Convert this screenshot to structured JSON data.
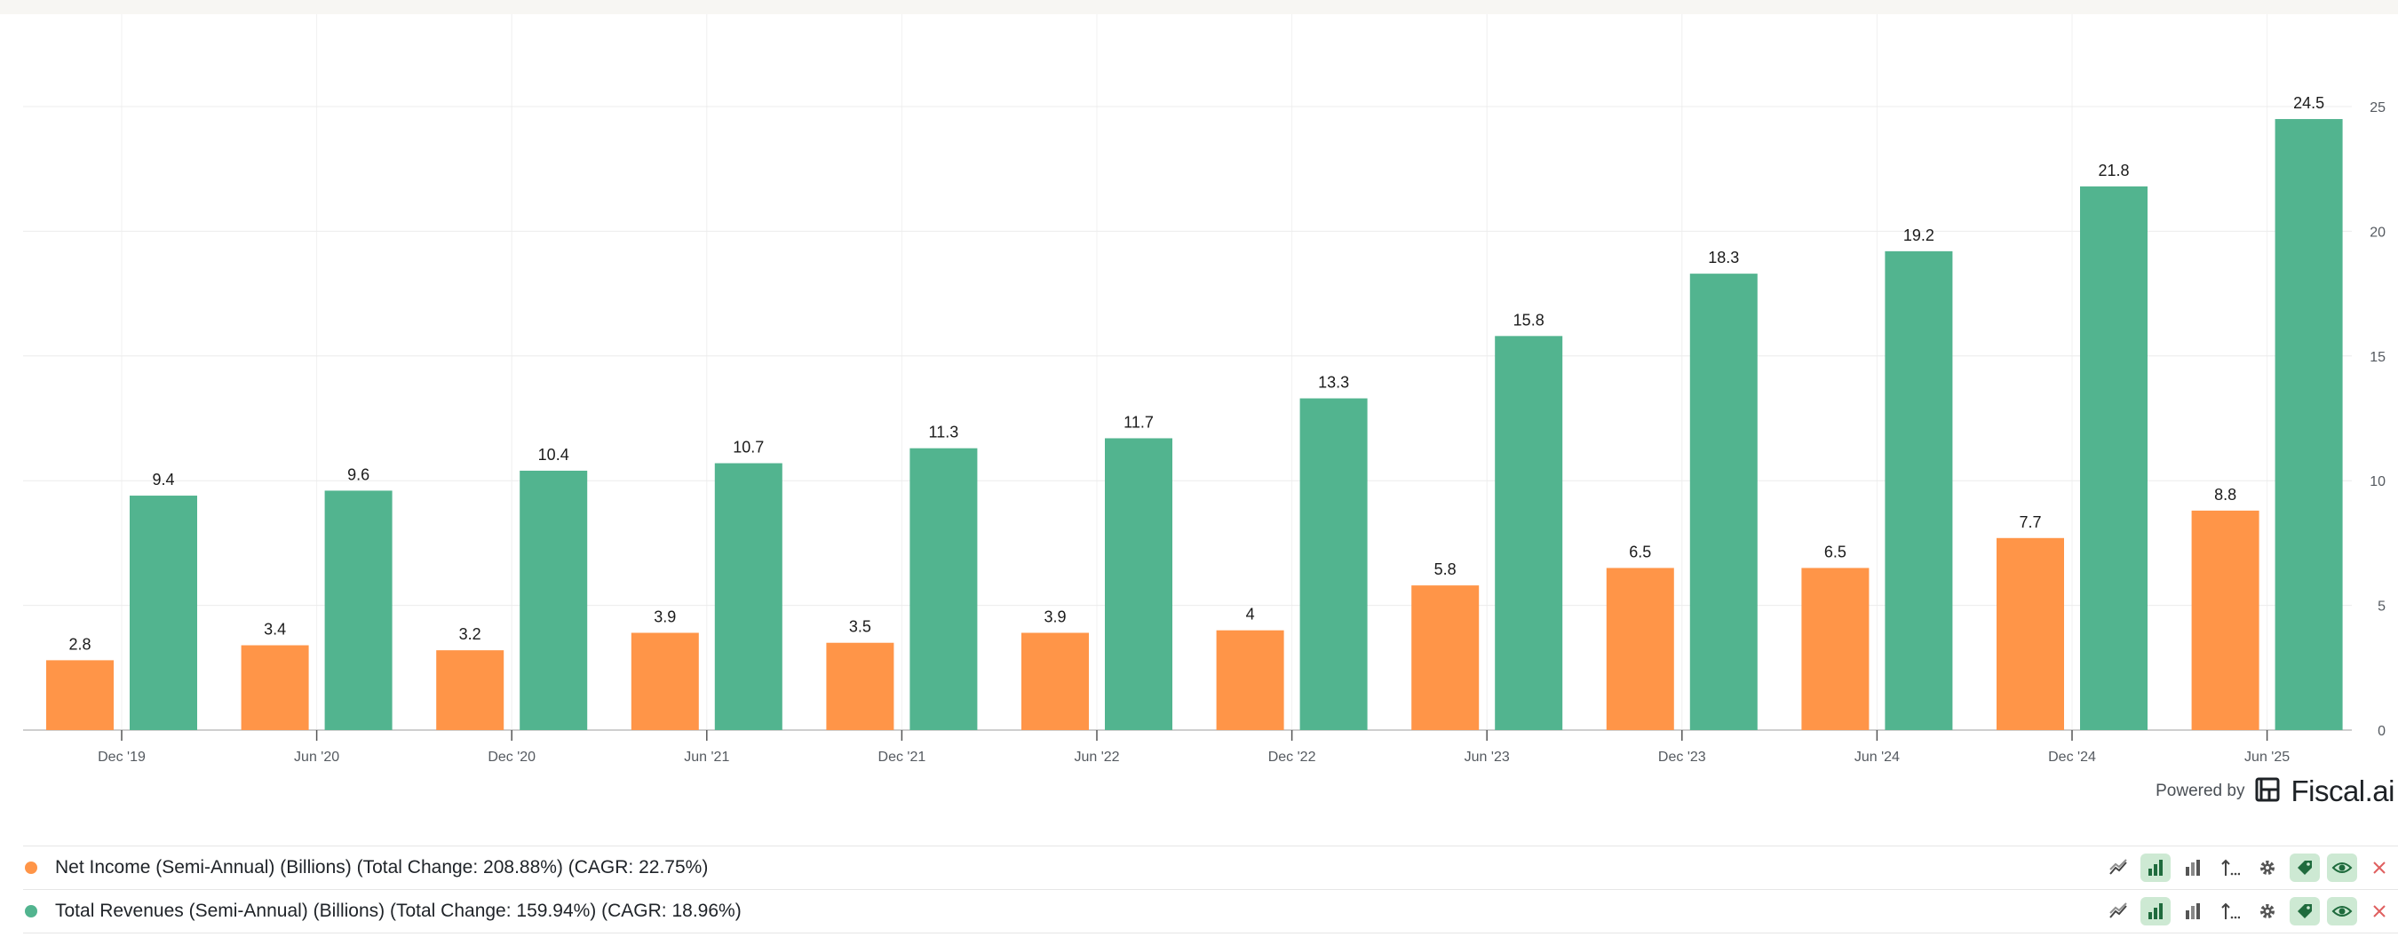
{
  "chart_data": {
    "type": "bar",
    "title": "",
    "xlabel": "",
    "ylabel": "",
    "categories": [
      "Dec '19",
      "Jun '20",
      "Dec '20",
      "Jun '21",
      "Dec '21",
      "Jun '22",
      "Dec '22",
      "Jun '23",
      "Dec '23",
      "Jun '24",
      "Dec '24",
      "Jun '25"
    ],
    "series": [
      {
        "name": "Net Income (Semi-Annual) (Billions)",
        "color": "#ff9548",
        "values": [
          2.8,
          3.4,
          3.2,
          3.9,
          3.5,
          3.9,
          4,
          5.8,
          6.5,
          6.5,
          7.7,
          8.8
        ]
      },
      {
        "name": "Total Revenues (Semi-Annual) (Billions)",
        "color": "#52b48f",
        "values": [
          9.4,
          9.6,
          10.4,
          10.7,
          11.3,
          11.7,
          13.3,
          15.8,
          18.3,
          19.2,
          21.8,
          24.5
        ]
      }
    ],
    "yticks": [
      0,
      5,
      10,
      15,
      20,
      25
    ],
    "ylim": [
      0,
      25
    ],
    "y_axis_position": "right",
    "grid": true
  },
  "branding": {
    "powered_by": "Powered by",
    "brand": "Fiscal.ai"
  },
  "legend": [
    {
      "label": "Net Income (Semi-Annual) (Billions) (Total Change: 208.88%) (CAGR: 22.75%)",
      "color": "#ff9548"
    },
    {
      "label": "Total Revenues (Semi-Annual) (Billions) (Total Change: 159.94%) (CAGR: 18.96%)",
      "color": "#52b48f"
    }
  ],
  "controls": [
    {
      "icon": "trend-line-icon",
      "active": false
    },
    {
      "icon": "bar-chart-icon",
      "active": true
    },
    {
      "icon": "stacked-bar-icon",
      "active": false
    },
    {
      "icon": "sort-icon",
      "active": false
    },
    {
      "icon": "gear-icon",
      "active": false
    },
    {
      "icon": "tag-icon",
      "active": true
    },
    {
      "icon": "eye-icon",
      "active": true
    },
    {
      "icon": "close-icon",
      "active": false
    }
  ]
}
